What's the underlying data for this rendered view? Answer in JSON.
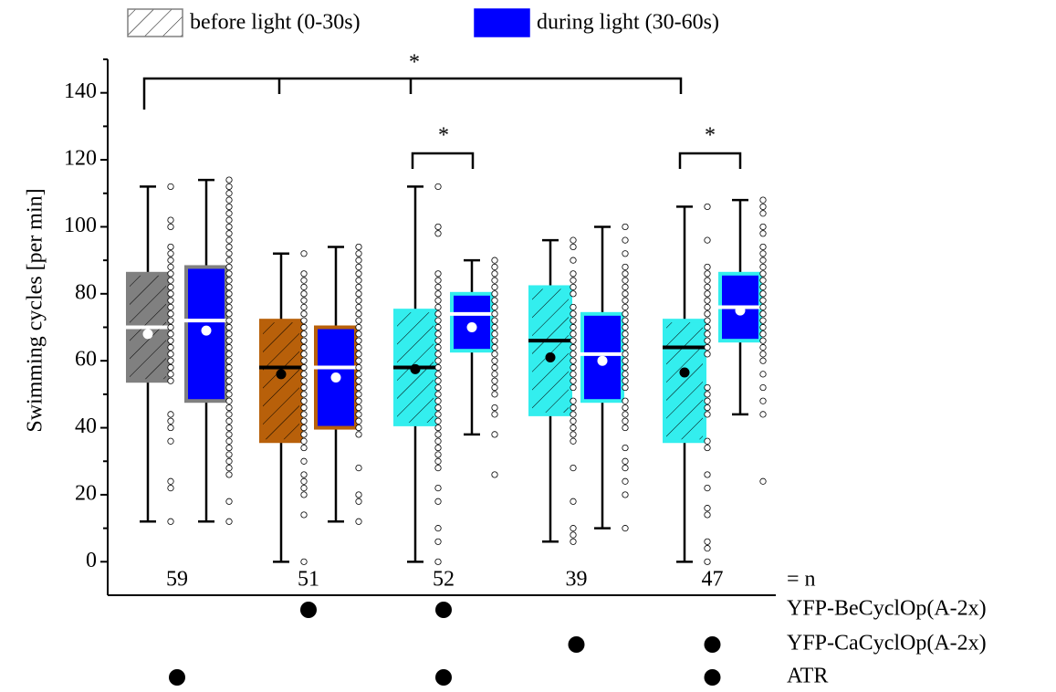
{
  "chart_data": {
    "type": "box",
    "ylabel": "Swimming cycles [per min]",
    "ylim": [
      -10,
      150
    ],
    "yticks": [
      0,
      20,
      40,
      60,
      80,
      100,
      120,
      140
    ],
    "yminor_ticks": [
      10,
      30,
      50,
      70,
      90,
      110,
      130,
      150
    ],
    "group_colors": [
      "#808080",
      "#b8600a",
      "#33eeee",
      "#33eeee",
      "#33eeee"
    ],
    "n": [
      59,
      51,
      52,
      39,
      47
    ],
    "n_label": "= n",
    "series": [
      {
        "name": "before light (0-30s)",
        "color": "#808080",
        "hatched": true,
        "boxes": [
          {
            "min": 12,
            "q1": 54,
            "median": 70,
            "q3": 86,
            "max": 112,
            "mean": 68,
            "median_color": "#ffffff",
            "mean_color": "#ffffff",
            "points": [
              112,
              102,
              100,
              94,
              92,
              90,
              88,
              86,
              84,
              82,
              80,
              78,
              76,
              74,
              72,
              70,
              68,
              66,
              64,
              62,
              60,
              58,
              56,
              54,
              44,
              42,
              40,
              36,
              24,
              22,
              12
            ]
          },
          {
            "min": 0,
            "q1": 36,
            "median": 58,
            "q3": 72,
            "max": 92,
            "mean": 56,
            "median_color": "#000000",
            "mean_color": "#000000",
            "points": [
              92,
              86,
              84,
              82,
              80,
              78,
              76,
              74,
              72,
              70,
              68,
              66,
              64,
              62,
              60,
              58,
              56,
              54,
              52,
              50,
              48,
              46,
              44,
              42,
              40,
              38,
              36,
              34,
              30,
              26,
              24,
              22,
              20,
              14,
              0
            ]
          },
          {
            "min": 0,
            "q1": 41,
            "median": 58,
            "q3": 75,
            "max": 112,
            "mean": 57.5,
            "median_color": "#000000",
            "mean_color": "#000000",
            "points": [
              112,
              100,
              98,
              86,
              84,
              82,
              80,
              78,
              76,
              74,
              72,
              70,
              68,
              66,
              64,
              62,
              60,
              58,
              56,
              54,
              52,
              50,
              48,
              46,
              44,
              42,
              40,
              38,
              36,
              34,
              32,
              30,
              28,
              22,
              18,
              10,
              6,
              0
            ]
          },
          {
            "min": 6,
            "q1": 44,
            "median": 66,
            "q3": 82,
            "max": 96,
            "mean": 61,
            "median_color": "#000000",
            "mean_color": "#000000",
            "points": [
              96,
              94,
              90,
              86,
              84,
              82,
              80,
              76,
              74,
              72,
              70,
              68,
              66,
              64,
              62,
              60,
              58,
              56,
              54,
              52,
              48,
              46,
              44,
              42,
              40,
              38,
              36,
              28,
              18,
              10,
              8,
              6
            ]
          },
          {
            "min": 0,
            "q1": 36,
            "median": 64,
            "q3": 72,
            "max": 106,
            "mean": 56.5,
            "median_color": "#000000",
            "mean_color": "#000000",
            "points": [
              106,
              96,
              88,
              86,
              84,
              82,
              80,
              78,
              76,
              74,
              72,
              70,
              68,
              66,
              64,
              62,
              52,
              50,
              48,
              46,
              44,
              36,
              34,
              26,
              22,
              16,
              14,
              6,
              4,
              0
            ]
          }
        ]
      },
      {
        "name": "during light (30-60s)",
        "color": "#0000ff",
        "hatched": false,
        "boxes": [
          {
            "min": 12,
            "q1": 48,
            "median": 72,
            "q3": 88,
            "max": 114,
            "mean": 69,
            "median_color": "#ffffff",
            "mean_color": "#ffffff",
            "points": [
              114,
              112,
              110,
              108,
              106,
              104,
              102,
              100,
              98,
              96,
              94,
              92,
              90,
              88,
              86,
              84,
              82,
              80,
              78,
              76,
              74,
              72,
              70,
              68,
              66,
              64,
              62,
              60,
              58,
              56,
              54,
              52,
              50,
              48,
              46,
              44,
              42,
              40,
              38,
              36,
              34,
              32,
              30,
              28,
              26,
              18,
              12
            ]
          },
          {
            "min": 12,
            "q1": 40,
            "median": 58,
            "q3": 70,
            "max": 94,
            "mean": 55,
            "median_color": "#ffffff",
            "mean_color": "#ffffff",
            "points": [
              94,
              92,
              90,
              88,
              86,
              84,
              82,
              80,
              78,
              76,
              74,
              72,
              70,
              68,
              66,
              64,
              62,
              60,
              58,
              56,
              54,
              52,
              50,
              48,
              46,
              44,
              42,
              40,
              38,
              28,
              20,
              18,
              12
            ]
          },
          {
            "min": 38,
            "q1": 63,
            "median": 74,
            "q3": 80,
            "max": 90,
            "mean": 70,
            "median_color": "#ffffff",
            "mean_color": "#ffffff",
            "points": [
              90,
              88,
              86,
              84,
              82,
              80,
              78,
              76,
              74,
              72,
              70,
              68,
              66,
              64,
              62,
              60,
              58,
              56,
              54,
              52,
              50,
              46,
              44,
              38,
              26
            ]
          },
          {
            "min": 10,
            "q1": 48,
            "median": 62,
            "q3": 74,
            "max": 100,
            "mean": 60,
            "median_color": "#ffffff",
            "mean_color": "#ffffff",
            "points": [
              100,
              96,
              92,
              88,
              86,
              84,
              82,
              80,
              78,
              76,
              74,
              72,
              70,
              68,
              66,
              64,
              62,
              60,
              58,
              56,
              54,
              52,
              48,
              46,
              44,
              42,
              40,
              34,
              30,
              28,
              24,
              20,
              10
            ]
          },
          {
            "min": 44,
            "q1": 66,
            "median": 76,
            "q3": 86,
            "max": 108,
            "mean": 75,
            "median_color": "#ffffff",
            "mean_color": "#ffffff",
            "points": [
              108,
              106,
              104,
              100,
              98,
              94,
              92,
              90,
              88,
              86,
              84,
              82,
              80,
              78,
              76,
              74,
              72,
              70,
              68,
              66,
              64,
              62,
              60,
              56,
              52,
              48,
              44,
              24
            ]
          }
        ]
      }
    ],
    "conditions": [
      {
        "name": "YFP-BeCyclOp(A-2x)",
        "present": [
          false,
          true,
          true,
          false,
          false
        ]
      },
      {
        "name": "YFP-CaCyclOp(A-2x)",
        "present": [
          false,
          false,
          false,
          true,
          true
        ]
      },
      {
        "name": "ATR",
        "present": [
          true,
          false,
          true,
          false,
          true
        ]
      }
    ],
    "significance": [
      {
        "label": "*"
      },
      {
        "label": "*"
      },
      {
        "label": "*"
      }
    ]
  }
}
